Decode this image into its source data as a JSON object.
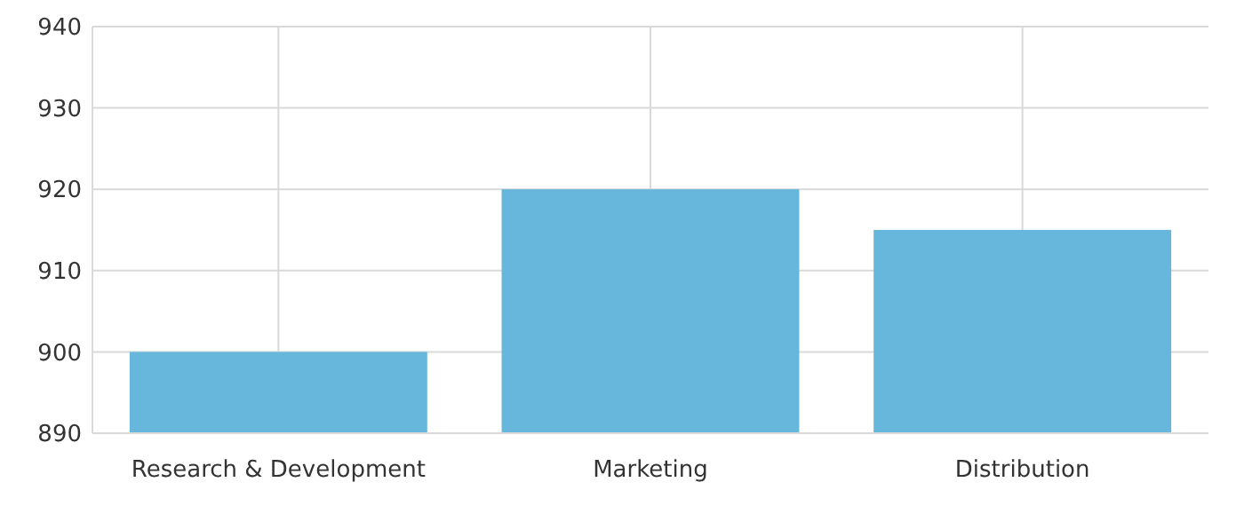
{
  "chart_data": {
    "type": "bar",
    "categories": [
      "Research & Development",
      "Marketing",
      "Distribution"
    ],
    "values": [
      900,
      920,
      915
    ],
    "color": "#67b6dc",
    "ylim": [
      890,
      940
    ],
    "yticks": [
      890,
      900,
      910,
      920,
      930,
      940
    ],
    "grid": true
  }
}
